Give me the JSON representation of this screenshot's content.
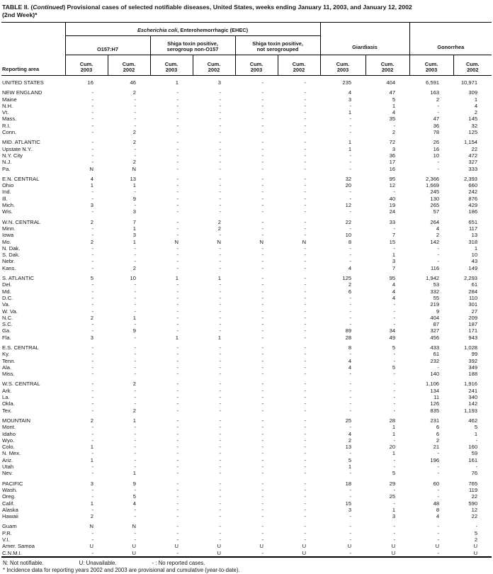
{
  "colors": {
    "ink": "#141414",
    "rule": "#000000",
    "background": "#ffffff"
  },
  "title": {
    "prefix": "TABLE II. (",
    "continued": "Continued",
    "suffix": ") Provisional cases of selected notifiable diseases, United States, weeks ending January 11, 2003, and January 12, 2002",
    "line2": "(2nd Week)*"
  },
  "header": {
    "reporting_area": "Reporting area",
    "ehec_italic": "Escherichia coli",
    "ehec_rest": ", Enterohemorrhagic (EHEC)",
    "o157": "O157:H7",
    "non_o157": "Shiga toxin positive,\nserogroup non-O157",
    "not_sero": "Shiga toxin positive,\nnot serogrouped",
    "giardiasis": "Giardiasis",
    "gonorrhea": "Gonorrhea",
    "cum_2003": "Cum.\n2003",
    "cum_2002": "Cum.\n2002"
  },
  "table": {
    "rows": [
      {
        "area": "UNITED STATES",
        "gap": true,
        "values": [
          "16",
          "46",
          "1",
          "3",
          "-",
          "-",
          "235",
          "404",
          "6,591",
          "10,971"
        ]
      },
      {
        "area": "NEW ENGLAND",
        "gap": true,
        "values": [
          "-",
          "2",
          "-",
          "-",
          "-",
          "-",
          "4",
          "47",
          "163",
          "309"
        ]
      },
      {
        "area": "Maine",
        "gap": false,
        "values": [
          "-",
          "-",
          "-",
          "-",
          "-",
          "-",
          "3",
          "5",
          "2",
          "1"
        ]
      },
      {
        "area": "N.H.",
        "gap": false,
        "values": [
          "-",
          "-",
          "-",
          "-",
          "-",
          "-",
          "-",
          "1",
          "-",
          "4"
        ]
      },
      {
        "area": "Vt.",
        "gap": false,
        "values": [
          "-",
          "-",
          "-",
          "-",
          "-",
          "-",
          "1",
          "4",
          "-",
          "2"
        ]
      },
      {
        "area": "Mass.",
        "gap": false,
        "values": [
          "-",
          "-",
          "-",
          "-",
          "-",
          "-",
          "-",
          "35",
          "47",
          "145"
        ]
      },
      {
        "area": "R.I.",
        "gap": false,
        "values": [
          "-",
          "-",
          "-",
          "-",
          "-",
          "-",
          "-",
          "-",
          "36",
          "32"
        ]
      },
      {
        "area": "Conn.",
        "gap": false,
        "values": [
          "-",
          "2",
          "-",
          "-",
          "-",
          "-",
          "-",
          "2",
          "78",
          "125"
        ]
      },
      {
        "area": "MID. ATLANTIC",
        "gap": true,
        "values": [
          "-",
          "2",
          "-",
          "-",
          "-",
          "-",
          "1",
          "72",
          "26",
          "1,154"
        ]
      },
      {
        "area": "Upstate N.Y.",
        "gap": false,
        "values": [
          "-",
          "-",
          "-",
          "-",
          "-",
          "-",
          "1",
          "3",
          "16",
          "22"
        ]
      },
      {
        "area": "N.Y. City",
        "gap": false,
        "values": [
          "-",
          "-",
          "-",
          "-",
          "-",
          "-",
          "-",
          "36",
          "10",
          "472"
        ]
      },
      {
        "area": "N.J.",
        "gap": false,
        "values": [
          "-",
          "2",
          "-",
          "-",
          "-",
          "-",
          "-",
          "17",
          "-",
          "327"
        ]
      },
      {
        "area": "Pa.",
        "gap": false,
        "values": [
          "N",
          "N",
          "-",
          "-",
          "-",
          "-",
          "-",
          "16",
          "-",
          "333"
        ]
      },
      {
        "area": "E.N. CENTRAL",
        "gap": true,
        "values": [
          "4",
          "13",
          "-",
          "-",
          "-",
          "-",
          "32",
          "95",
          "2,366",
          "2,393"
        ]
      },
      {
        "area": "Ohio",
        "gap": false,
        "values": [
          "1",
          "1",
          "-",
          "-",
          "-",
          "-",
          "20",
          "12",
          "1,669",
          "660"
        ]
      },
      {
        "area": "Ind.",
        "gap": false,
        "values": [
          "-",
          "-",
          "-",
          "-",
          "-",
          "-",
          "-",
          "-",
          "245",
          "242"
        ]
      },
      {
        "area": "Ill.",
        "gap": false,
        "values": [
          "-",
          "9",
          "-",
          "-",
          "-",
          "-",
          "-",
          "40",
          "130",
          "876"
        ]
      },
      {
        "area": "Mich.",
        "gap": false,
        "values": [
          "3",
          "-",
          "-",
          "-",
          "-",
          "-",
          "12",
          "19",
          "265",
          "429"
        ]
      },
      {
        "area": "Wis.",
        "gap": false,
        "values": [
          "-",
          "3",
          "-",
          "-",
          "-",
          "-",
          "-",
          "24",
          "57",
          "186"
        ]
      },
      {
        "area": "W.N. CENTRAL",
        "gap": true,
        "values": [
          "2",
          "7",
          "-",
          "2",
          "-",
          "-",
          "22",
          "33",
          "264",
          "651"
        ]
      },
      {
        "area": "Minn.",
        "gap": false,
        "values": [
          "-",
          "1",
          "-",
          "2",
          "-",
          "-",
          "-",
          "-",
          "4",
          "117"
        ]
      },
      {
        "area": "Iowa",
        "gap": false,
        "values": [
          "-",
          "3",
          "-",
          "-",
          "-",
          "-",
          "10",
          "7",
          "2",
          "13"
        ]
      },
      {
        "area": "Mo.",
        "gap": false,
        "values": [
          "2",
          "1",
          "N",
          "N",
          "N",
          "N",
          "8",
          "15",
          "142",
          "318"
        ]
      },
      {
        "area": "N. Dak.",
        "gap": false,
        "values": [
          "-",
          "-",
          "-",
          "-",
          "-",
          "-",
          "-",
          "-",
          "-",
          "1"
        ]
      },
      {
        "area": "S. Dak.",
        "gap": false,
        "values": [
          "-",
          "-",
          "-",
          "-",
          "-",
          "-",
          "-",
          "1",
          "-",
          "10"
        ]
      },
      {
        "area": "Nebr.",
        "gap": false,
        "values": [
          "-",
          "-",
          "-",
          "-",
          "-",
          "-",
          "-",
          "3",
          "-",
          "43"
        ]
      },
      {
        "area": "Kans.",
        "gap": false,
        "values": [
          "-",
          "2",
          "-",
          "-",
          "-",
          "-",
          "4",
          "7",
          "116",
          "149"
        ]
      },
      {
        "area": "S. ATLANTIC",
        "gap": true,
        "values": [
          "5",
          "10",
          "1",
          "1",
          "-",
          "-",
          "125",
          "95",
          "1,942",
          "2,293"
        ]
      },
      {
        "area": "Del.",
        "gap": false,
        "values": [
          "-",
          "-",
          "-",
          "-",
          "-",
          "-",
          "2",
          "4",
          "53",
          "61"
        ]
      },
      {
        "area": "Md.",
        "gap": false,
        "values": [
          "-",
          "-",
          "-",
          "-",
          "-",
          "-",
          "6",
          "4",
          "332",
          "284"
        ]
      },
      {
        "area": "D.C.",
        "gap": false,
        "values": [
          "-",
          "-",
          "-",
          "-",
          "-",
          "-",
          "-",
          "4",
          "55",
          "110"
        ]
      },
      {
        "area": "Va.",
        "gap": false,
        "values": [
          "-",
          "-",
          "-",
          "-",
          "-",
          "-",
          "-",
          "-",
          "219",
          "301"
        ]
      },
      {
        "area": "W. Va.",
        "gap": false,
        "values": [
          "-",
          "-",
          "-",
          "-",
          "-",
          "-",
          "-",
          "-",
          "9",
          "27"
        ]
      },
      {
        "area": "N.C.",
        "gap": false,
        "values": [
          "2",
          "1",
          "-",
          "-",
          "-",
          "-",
          "-",
          "-",
          "404",
          "209"
        ]
      },
      {
        "area": "S.C.",
        "gap": false,
        "values": [
          "-",
          "-",
          "-",
          "-",
          "-",
          "-",
          "-",
          "-",
          "87",
          "187"
        ]
      },
      {
        "area": "Ga.",
        "gap": false,
        "values": [
          "-",
          "9",
          "-",
          "-",
          "-",
          "-",
          "89",
          "34",
          "327",
          "171"
        ]
      },
      {
        "area": "Fla.",
        "gap": false,
        "values": [
          "3",
          "-",
          "1",
          "1",
          "-",
          "-",
          "28",
          "49",
          "456",
          "943"
        ]
      },
      {
        "area": "E.S. CENTRAL",
        "gap": true,
        "values": [
          "-",
          "-",
          "-",
          "-",
          "-",
          "-",
          "8",
          "5",
          "433",
          "1,028"
        ]
      },
      {
        "area": "Ky.",
        "gap": false,
        "values": [
          "-",
          "-",
          "-",
          "-",
          "-",
          "-",
          "-",
          "-",
          "61",
          "99"
        ]
      },
      {
        "area": "Tenn.",
        "gap": false,
        "values": [
          "-",
          "-",
          "-",
          "-",
          "-",
          "-",
          "4",
          "-",
          "232",
          "392"
        ]
      },
      {
        "area": "Ala.",
        "gap": false,
        "values": [
          "-",
          "-",
          "-",
          "-",
          "-",
          "-",
          "4",
          "5",
          "-",
          "349"
        ]
      },
      {
        "area": "Miss.",
        "gap": false,
        "values": [
          "-",
          "-",
          "-",
          "-",
          "-",
          "-",
          "-",
          "-",
          "140",
          "188"
        ]
      },
      {
        "area": "W.S. CENTRAL",
        "gap": true,
        "values": [
          "-",
          "2",
          "-",
          "-",
          "-",
          "-",
          "-",
          "-",
          "1,106",
          "1,916"
        ]
      },
      {
        "area": "Ark.",
        "gap": false,
        "values": [
          "-",
          "-",
          "-",
          "-",
          "-",
          "-",
          "-",
          "-",
          "134",
          "241"
        ]
      },
      {
        "area": "La.",
        "gap": false,
        "values": [
          "-",
          "-",
          "-",
          "-",
          "-",
          "-",
          "-",
          "-",
          "11",
          "340"
        ]
      },
      {
        "area": "Okla.",
        "gap": false,
        "values": [
          "-",
          "-",
          "-",
          "-",
          "-",
          "-",
          "-",
          "-",
          "126",
          "142"
        ]
      },
      {
        "area": "Tex.",
        "gap": false,
        "values": [
          "-",
          "2",
          "-",
          "-",
          "-",
          "-",
          "-",
          "-",
          "835",
          "1,193"
        ]
      },
      {
        "area": "MOUNTAIN",
        "gap": true,
        "values": [
          "2",
          "1",
          "-",
          "-",
          "-",
          "-",
          "25",
          "28",
          "231",
          "462"
        ]
      },
      {
        "area": "Mont.",
        "gap": false,
        "values": [
          "-",
          "-",
          "-",
          "-",
          "-",
          "-",
          "-",
          "1",
          "6",
          "5"
        ]
      },
      {
        "area": "Idaho",
        "gap": false,
        "values": [
          "-",
          "-",
          "-",
          "-",
          "-",
          "-",
          "4",
          "1",
          "6",
          "1"
        ]
      },
      {
        "area": "Wyo.",
        "gap": false,
        "values": [
          "-",
          "-",
          "-",
          "-",
          "-",
          "-",
          "2",
          "-",
          "2",
          "-"
        ]
      },
      {
        "area": "Colo.",
        "gap": false,
        "values": [
          "1",
          "-",
          "-",
          "-",
          "-",
          "-",
          "13",
          "20",
          "21",
          "160"
        ]
      },
      {
        "area": "N. Mex.",
        "gap": false,
        "values": [
          "-",
          "-",
          "-",
          "-",
          "-",
          "-",
          "-",
          "1",
          "-",
          "59"
        ]
      },
      {
        "area": "Ariz.",
        "gap": false,
        "values": [
          "1",
          "-",
          "-",
          "-",
          "-",
          "-",
          "5",
          "-",
          "196",
          "161"
        ]
      },
      {
        "area": "Utah",
        "gap": false,
        "values": [
          "-",
          "-",
          "-",
          "-",
          "-",
          "-",
          "1",
          "-",
          "-",
          "-"
        ]
      },
      {
        "area": "Nev.",
        "gap": false,
        "values": [
          "-",
          "1",
          "-",
          "-",
          "-",
          "-",
          "-",
          "5",
          "-",
          "76"
        ]
      },
      {
        "area": "PACIFIC",
        "gap": true,
        "values": [
          "3",
          "9",
          "-",
          "-",
          "-",
          "-",
          "18",
          "29",
          "60",
          "765"
        ]
      },
      {
        "area": "Wash.",
        "gap": false,
        "values": [
          "-",
          "-",
          "-",
          "-",
          "-",
          "-",
          "-",
          "-",
          "-",
          "119"
        ]
      },
      {
        "area": "Oreg.",
        "gap": false,
        "values": [
          "-",
          "5",
          "-",
          "-",
          "-",
          "-",
          "-",
          "25",
          "-",
          "22"
        ]
      },
      {
        "area": "Calif.",
        "gap": false,
        "values": [
          "1",
          "4",
          "-",
          "-",
          "-",
          "-",
          "15",
          "-",
          "48",
          "590"
        ]
      },
      {
        "area": "Alaska",
        "gap": false,
        "values": [
          "-",
          "-",
          "-",
          "-",
          "-",
          "-",
          "3",
          "1",
          "8",
          "12"
        ]
      },
      {
        "area": "Hawaii",
        "gap": false,
        "values": [
          "2",
          "-",
          "-",
          "-",
          "-",
          "-",
          "-",
          "3",
          "4",
          "22"
        ]
      },
      {
        "area": "Guam",
        "gap": true,
        "values": [
          "N",
          "N",
          "-",
          "-",
          "-",
          "-",
          "-",
          "-",
          "-",
          "-"
        ]
      },
      {
        "area": "P.R.",
        "gap": false,
        "values": [
          "-",
          "-",
          "-",
          "-",
          "-",
          "-",
          "-",
          "-",
          "-",
          "5"
        ]
      },
      {
        "area": "V.I.",
        "gap": false,
        "values": [
          "-",
          "-",
          "-",
          "-",
          "-",
          "-",
          "-",
          "-",
          "-",
          "2"
        ]
      },
      {
        "area": "Amer. Samoa",
        "gap": false,
        "values": [
          "U",
          "U",
          "U",
          "U",
          "U",
          "U",
          "U",
          "U",
          "U",
          "U"
        ]
      },
      {
        "area": "C.N.M.I.",
        "gap": false,
        "values": [
          "-",
          "U",
          "-",
          "U",
          "-",
          "U",
          "-",
          "U",
          "-",
          "U"
        ]
      }
    ]
  },
  "footnotes": {
    "n": "N: Not notifiable.",
    "u": "U: Unavailable.",
    "dash": "- : No reported cases.",
    "star": "* Incidence data for reporting years 2002 and 2003 are provisional and cumulative (year-to-date)."
  }
}
